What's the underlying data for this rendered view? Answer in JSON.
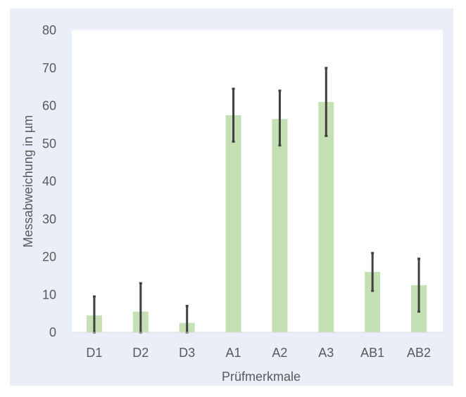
{
  "colors": {
    "panel_background": "#e9eef8",
    "plot_background": "#ffffff",
    "bar": "#c5e0b4",
    "error_bar": "#404040",
    "text": "#595959"
  },
  "chart_data": {
    "type": "bar",
    "categories": [
      "D1",
      "D2",
      "D3",
      "A1",
      "A2",
      "A3",
      "AB1",
      "AB2"
    ],
    "values": [
      4.5,
      5.5,
      2.5,
      57.5,
      56.5,
      61.0,
      16.0,
      12.5
    ],
    "error_low": [
      0,
      0,
      0,
      50.5,
      49.5,
      52.0,
      11.0,
      5.5
    ],
    "error_high": [
      9.5,
      13.0,
      7.0,
      64.5,
      64.0,
      70.0,
      21.0,
      19.5
    ],
    "xlabel": "Prüfmerkmale",
    "ylabel": "Messabweichung in µm",
    "ylim": [
      0,
      80
    ],
    "yticks": [
      "0",
      "10",
      "20",
      "30",
      "40",
      "50",
      "60",
      "70",
      "80"
    ],
    "grid": true
  }
}
